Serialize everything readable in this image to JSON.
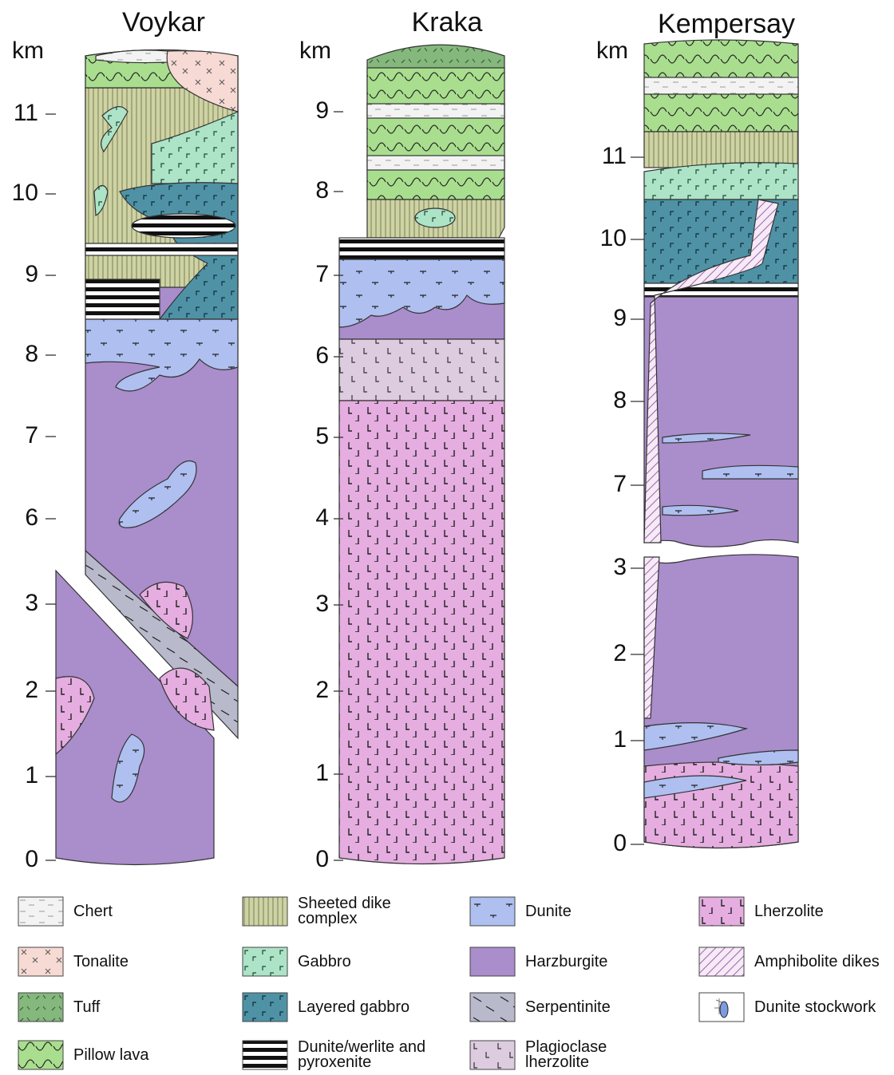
{
  "columns": [
    {
      "title": "Voykar",
      "unit": "km",
      "ticks": [
        11,
        10,
        9,
        8,
        7,
        6,
        3,
        2,
        1,
        0
      ]
    },
    {
      "title": "Kraka",
      "unit": "km",
      "ticks": [
        9,
        8,
        7,
        6,
        5,
        4,
        3,
        2,
        1,
        0
      ]
    },
    {
      "title": "Kempersay",
      "unit": "km",
      "ticks": [
        11,
        10,
        9,
        8,
        7,
        3,
        2,
        1,
        0
      ]
    }
  ],
  "legend": [
    {
      "label": "Chert"
    },
    {
      "label": "Tonalite"
    },
    {
      "label": "Tuff"
    },
    {
      "label": "Pillow lava"
    },
    {
      "label": "Sheeted dike complex"
    },
    {
      "label": "Gabbro"
    },
    {
      "label": "Layered gabbro"
    },
    {
      "label": "Dunite/werlite and pyroxenite"
    },
    {
      "label": "Dunite"
    },
    {
      "label": "Harzburgite"
    },
    {
      "label": "Serpentinite"
    },
    {
      "label": "Plagioclase lherzolite"
    },
    {
      "label": "Lherzolite"
    },
    {
      "label": "Amphibolite dikes"
    },
    {
      "label": "Dunite stockwork"
    }
  ]
}
